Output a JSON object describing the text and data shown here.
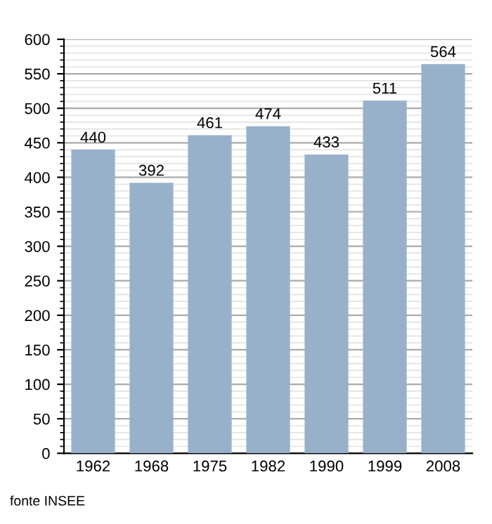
{
  "chart_data": {
    "type": "bar",
    "categories": [
      "1962",
      "1968",
      "1975",
      "1982",
      "1990",
      "1999",
      "2008"
    ],
    "values": [
      440,
      392,
      461,
      474,
      433,
      511,
      564
    ],
    "color": "#98b1cb",
    "data_labels": true,
    "ylim": [
      0,
      600
    ],
    "yticks": [
      0,
      50,
      100,
      150,
      200,
      250,
      300,
      350,
      400,
      450,
      500,
      550,
      600
    ],
    "grid": "y",
    "annotations": [
      "fonte INSEE"
    ]
  }
}
